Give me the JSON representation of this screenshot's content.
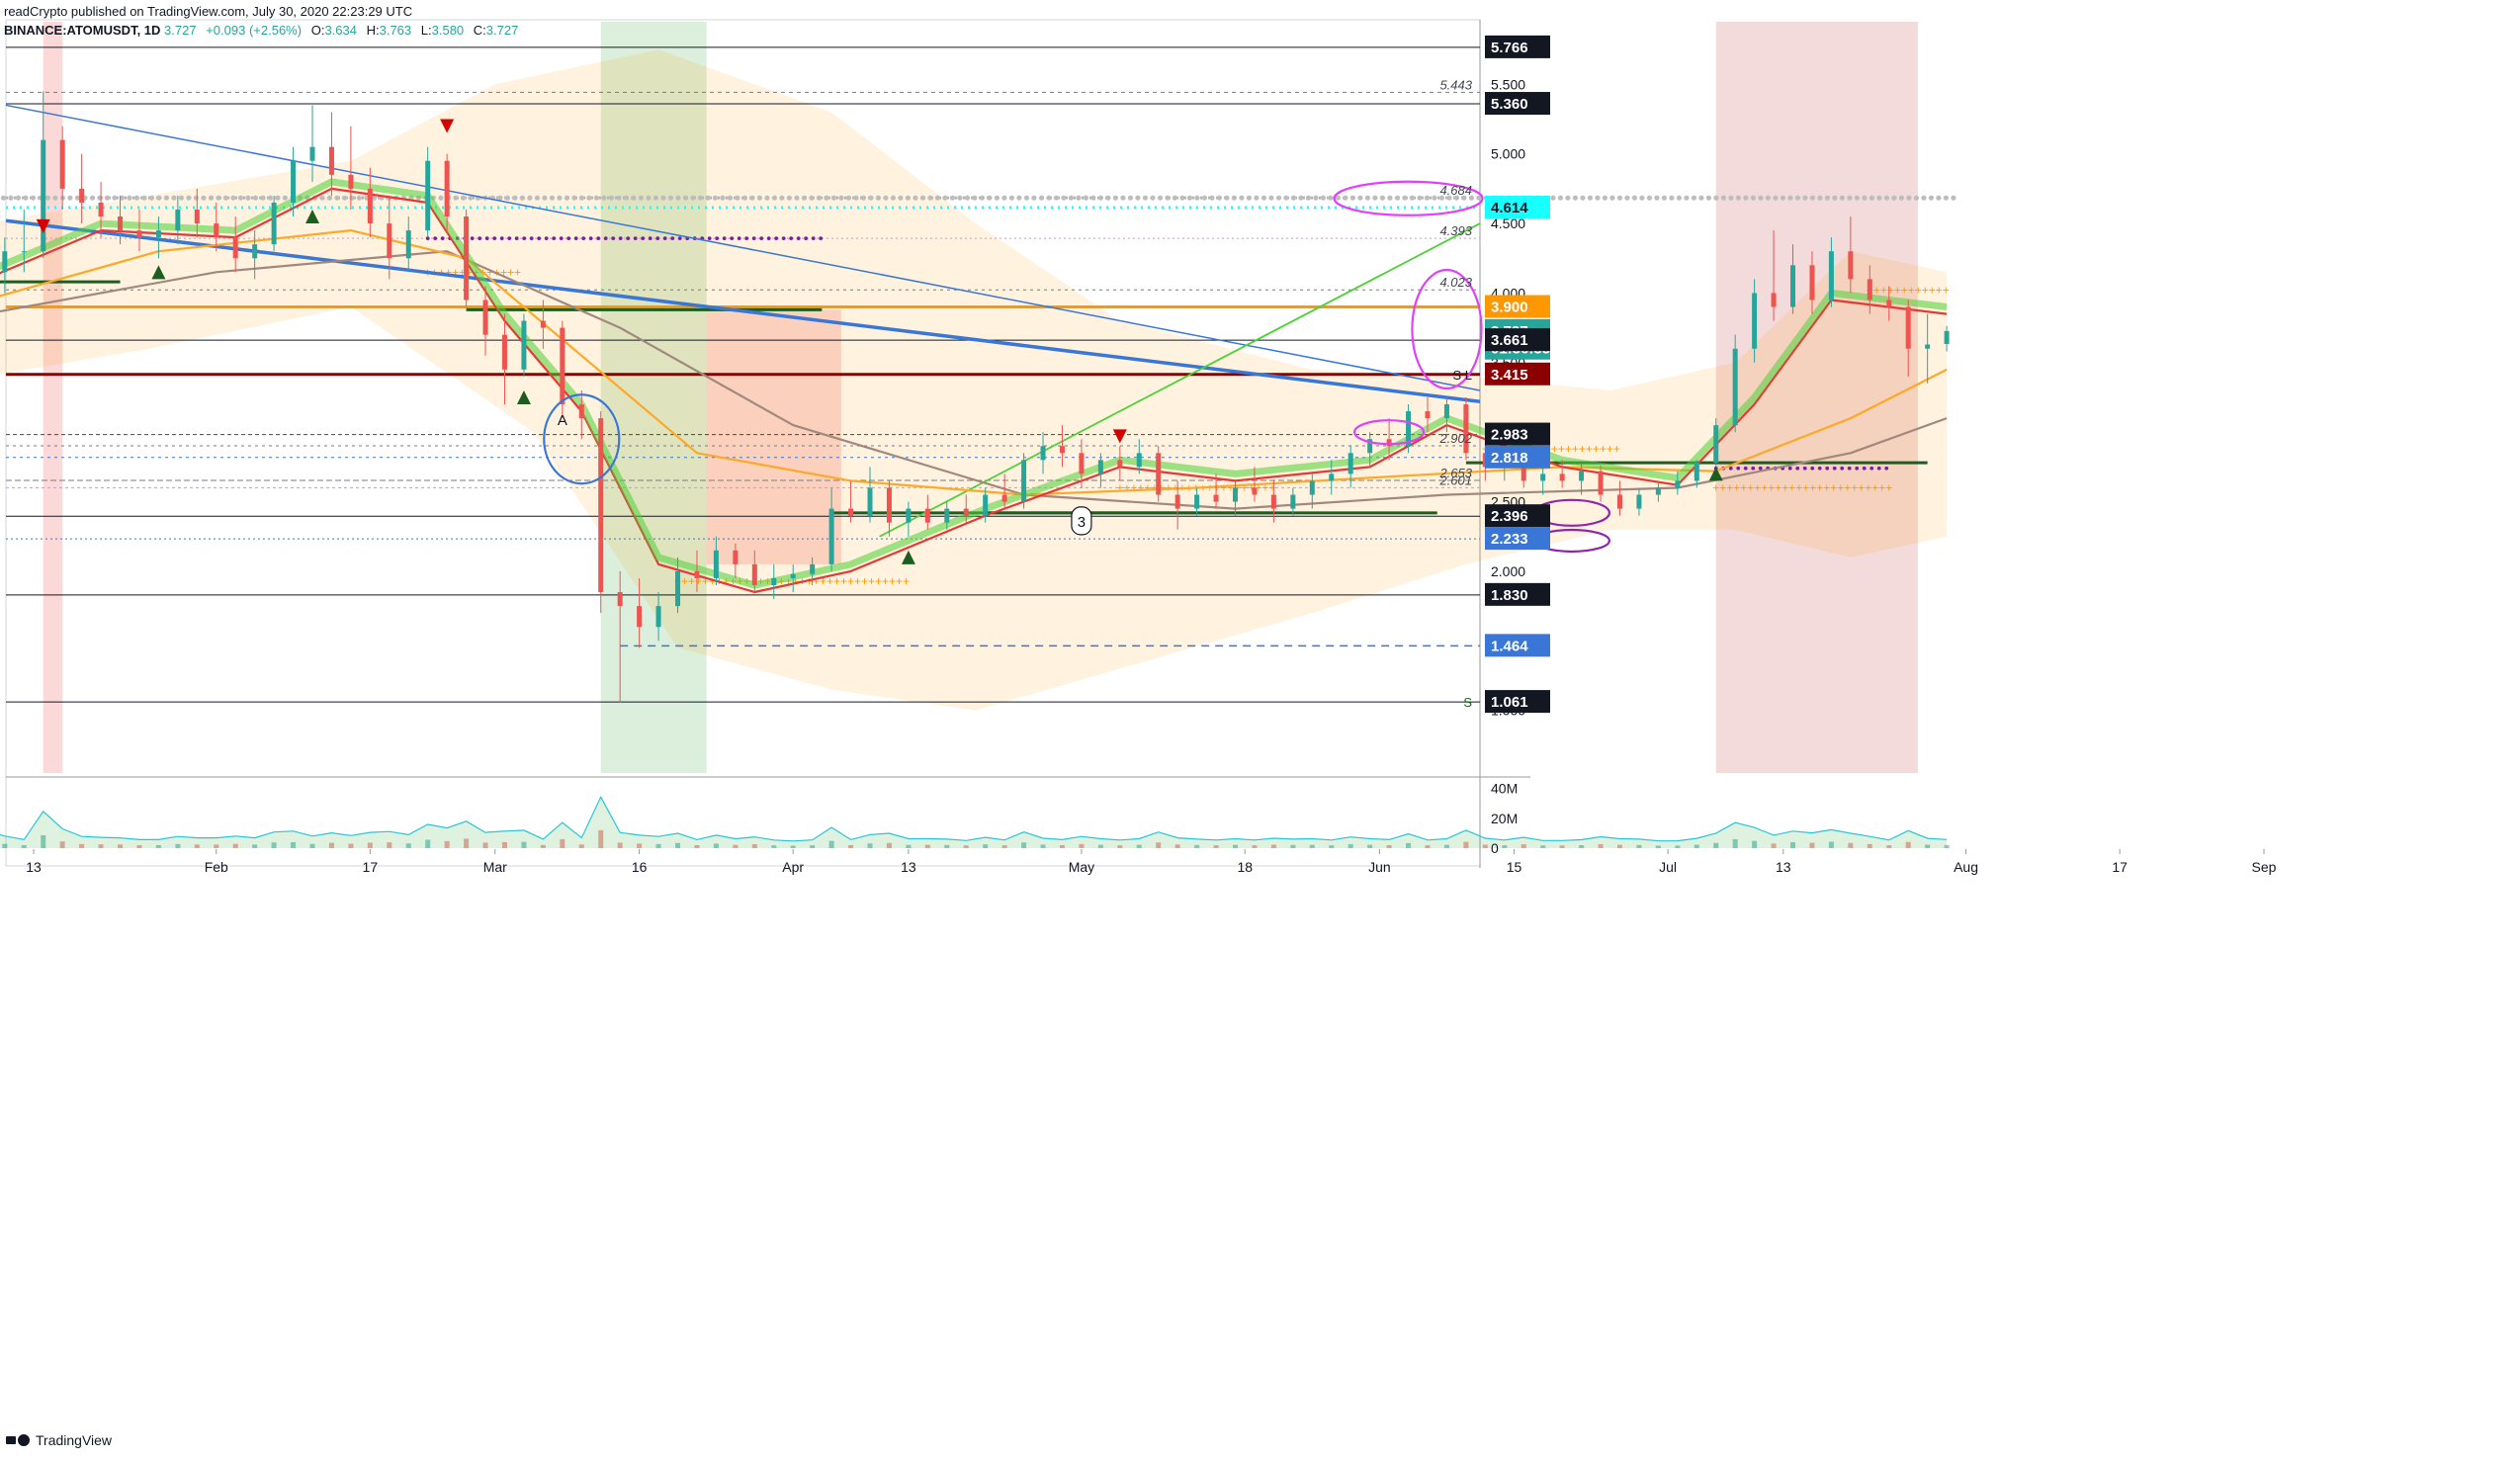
{
  "header": {
    "publisher_line": "readCrypto published on TradingView.com, July 30, 2020 22:23:29 UTC",
    "symbol": "BINANCE:ATOMUSDT, 1D",
    "last": "3.727",
    "change": "+0.093 (+2.56%)",
    "o_label": "O:",
    "o": "3.634",
    "h_label": "H:",
    "h": "3.763",
    "l_label": "L:",
    "l": "3.580",
    "c_label": "C:",
    "c": "3.727"
  },
  "footer": {
    "brand": "TradingView"
  },
  "colors": {
    "up": "#26a69a",
    "down": "#ef5350",
    "orange": "#ff9800",
    "blue_line": "#3a76d6",
    "green_line": "#4cd137",
    "magenta": "#e040fb",
    "purple": "#8e24aa",
    "cyan": "#18ffff",
    "dark_red": "#8b0000"
  },
  "chart_data": {
    "type": "candlestick",
    "symbol": "ATOMUSDT",
    "interval": "1D",
    "ylim": [
      0.55,
      5.95
    ],
    "x_ticks": [
      "13",
      "Feb",
      "17",
      "Mar",
      "16",
      "Apr",
      "13",
      "May",
      "18",
      "Jun",
      "15",
      "Jul",
      "13",
      "Aug",
      "17",
      "Sep"
    ],
    "y_ticks": [
      "1.000",
      "2.000",
      "2.500",
      "3.000",
      "3.500",
      "4.000",
      "4.500",
      "5.000",
      "5.500"
    ],
    "price_labels": [
      {
        "value": 5.766,
        "label": "5.766",
        "bg": "#131722",
        "fg": "#ffffff"
      },
      {
        "value": 5.36,
        "label": "5.360",
        "bg": "#131722",
        "fg": "#ffffff"
      },
      {
        "value": 4.614,
        "label": "4.614",
        "bg": "#18ffff",
        "fg": "#131722"
      },
      {
        "value": 3.9,
        "label": "3.900",
        "bg": "#ff9800",
        "fg": "#ffffff"
      },
      {
        "value": 3.727,
        "label": "3.727",
        "bg": "#26a69a",
        "fg": "#ffffff"
      },
      {
        "value": 3.6,
        "label": "01:36:33",
        "bg": "#26a69a",
        "fg": "#ffffff"
      },
      {
        "value": 3.661,
        "label": "3.661",
        "bg": "#131722",
        "fg": "#ffffff"
      },
      {
        "value": 3.415,
        "label": "3.415",
        "bg": "#8b0000",
        "fg": "#ffffff"
      },
      {
        "value": 2.983,
        "label": "2.983",
        "bg": "#131722",
        "fg": "#ffffff"
      },
      {
        "value": 2.818,
        "label": "2.818",
        "bg": "#3a76d6",
        "fg": "#ffffff"
      },
      {
        "value": 2.396,
        "label": "2.396",
        "bg": "#131722",
        "fg": "#ffffff"
      },
      {
        "value": 2.233,
        "label": "2.233",
        "bg": "#3a76d6",
        "fg": "#ffffff"
      },
      {
        "value": 1.83,
        "label": "1.830",
        "bg": "#131722",
        "fg": "#ffffff"
      },
      {
        "value": 1.464,
        "label": "1.464",
        "bg": "#3a76d6",
        "fg": "#ffffff"
      },
      {
        "value": 1.061,
        "label": "1.061",
        "bg": "#131722",
        "fg": "#ffffff"
      }
    ],
    "level_annotations": [
      {
        "value": 5.443,
        "label": "5.443"
      },
      {
        "value": 4.684,
        "label": "4.684"
      },
      {
        "value": 4.393,
        "label": "4.393"
      },
      {
        "value": 4.023,
        "label": "4.023"
      },
      {
        "value": 2.902,
        "label": "2.902"
      },
      {
        "value": 2.653,
        "label": "2.653"
      },
      {
        "value": 2.601,
        "label": "2.601"
      }
    ],
    "side_marks": [
      {
        "value": 3.415,
        "label": "S L"
      },
      {
        "value": 1.061,
        "label": "S"
      }
    ],
    "chart_annotations": [
      {
        "label": "A",
        "date": "2020-03-08",
        "value": 3.05
      },
      {
        "label": "3",
        "date": "2020-05-01",
        "value": 2.32
      }
    ],
    "volume_ticks": [
      "40M",
      "20M",
      "0"
    ],
    "candles": [
      {
        "d": "2020-01-08",
        "o": 3.85,
        "h": 4.25,
        "l": 3.7,
        "c": 4.15
      },
      {
        "d": "2020-01-10",
        "o": 4.15,
        "h": 4.4,
        "l": 4.0,
        "c": 4.3
      },
      {
        "d": "2020-01-12",
        "o": 4.3,
        "h": 4.6,
        "l": 4.15,
        "c": 4.3
      },
      {
        "d": "2020-01-14",
        "o": 4.3,
        "h": 5.45,
        "l": 4.25,
        "c": 5.1
      },
      {
        "d": "2020-01-16",
        "o": 5.1,
        "h": 5.2,
        "l": 4.6,
        "c": 4.75
      },
      {
        "d": "2020-01-18",
        "o": 4.75,
        "h": 5.0,
        "l": 4.5,
        "c": 4.65
      },
      {
        "d": "2020-01-20",
        "o": 4.65,
        "h": 4.8,
        "l": 4.4,
        "c": 4.55
      },
      {
        "d": "2020-01-22",
        "o": 4.55,
        "h": 4.7,
        "l": 4.35,
        "c": 4.45
      },
      {
        "d": "2020-01-24",
        "o": 4.45,
        "h": 4.6,
        "l": 4.3,
        "c": 4.4
      },
      {
        "d": "2020-01-26",
        "o": 4.4,
        "h": 4.55,
        "l": 4.25,
        "c": 4.45
      },
      {
        "d": "2020-01-28",
        "o": 4.45,
        "h": 4.7,
        "l": 4.35,
        "c": 4.6
      },
      {
        "d": "2020-01-30",
        "o": 4.6,
        "h": 4.75,
        "l": 4.4,
        "c": 4.5
      },
      {
        "d": "2020-02-01",
        "o": 4.5,
        "h": 4.65,
        "l": 4.3,
        "c": 4.4
      },
      {
        "d": "2020-02-03",
        "o": 4.4,
        "h": 4.55,
        "l": 4.15,
        "c": 4.25
      },
      {
        "d": "2020-02-05",
        "o": 4.25,
        "h": 4.45,
        "l": 4.1,
        "c": 4.35
      },
      {
        "d": "2020-02-07",
        "o": 4.35,
        "h": 4.7,
        "l": 4.3,
        "c": 4.65
      },
      {
        "d": "2020-02-09",
        "o": 4.65,
        "h": 5.05,
        "l": 4.55,
        "c": 4.95
      },
      {
        "d": "2020-02-11",
        "o": 4.95,
        "h": 5.35,
        "l": 4.8,
        "c": 5.05
      },
      {
        "d": "2020-02-13",
        "o": 5.05,
        "h": 5.3,
        "l": 4.7,
        "c": 4.85
      },
      {
        "d": "2020-02-15",
        "o": 4.85,
        "h": 5.2,
        "l": 4.6,
        "c": 4.75
      },
      {
        "d": "2020-02-17",
        "o": 4.75,
        "h": 4.9,
        "l": 4.4,
        "c": 4.5
      },
      {
        "d": "2020-02-19",
        "o": 4.5,
        "h": 4.7,
        "l": 4.1,
        "c": 4.25
      },
      {
        "d": "2020-02-21",
        "o": 4.25,
        "h": 4.55,
        "l": 4.15,
        "c": 4.45
      },
      {
        "d": "2020-02-23",
        "o": 4.45,
        "h": 5.05,
        "l": 4.4,
        "c": 4.95
      },
      {
        "d": "2020-02-25",
        "o": 4.95,
        "h": 5.0,
        "l": 4.45,
        "c": 4.55
      },
      {
        "d": "2020-02-27",
        "o": 4.55,
        "h": 4.6,
        "l": 3.9,
        "c": 3.95
      },
      {
        "d": "2020-02-29",
        "o": 3.95,
        "h": 4.05,
        "l": 3.55,
        "c": 3.7
      },
      {
        "d": "2020-03-02",
        "o": 3.7,
        "h": 3.85,
        "l": 3.2,
        "c": 3.45
      },
      {
        "d": "2020-03-04",
        "o": 3.45,
        "h": 3.85,
        "l": 3.4,
        "c": 3.8
      },
      {
        "d": "2020-03-06",
        "o": 3.8,
        "h": 3.95,
        "l": 3.6,
        "c": 3.75
      },
      {
        "d": "2020-03-08",
        "o": 3.75,
        "h": 3.8,
        "l": 3.1,
        "c": 3.2
      },
      {
        "d": "2020-03-10",
        "o": 3.2,
        "h": 3.3,
        "l": 2.95,
        "c": 3.1
      },
      {
        "d": "2020-03-12",
        "o": 3.1,
        "h": 3.15,
        "l": 1.7,
        "c": 1.85
      },
      {
        "d": "2020-03-14",
        "o": 1.85,
        "h": 2.0,
        "l": 1.06,
        "c": 1.75
      },
      {
        "d": "2020-03-16",
        "o": 1.75,
        "h": 1.95,
        "l": 1.45,
        "c": 1.6
      },
      {
        "d": "2020-03-18",
        "o": 1.6,
        "h": 1.85,
        "l": 1.5,
        "c": 1.75
      },
      {
        "d": "2020-03-20",
        "o": 1.75,
        "h": 2.1,
        "l": 1.7,
        "c": 2.0
      },
      {
        "d": "2020-03-22",
        "o": 2.0,
        "h": 2.15,
        "l": 1.85,
        "c": 1.95
      },
      {
        "d": "2020-03-24",
        "o": 1.95,
        "h": 2.25,
        "l": 1.9,
        "c": 2.15
      },
      {
        "d": "2020-03-26",
        "o": 2.15,
        "h": 2.2,
        "l": 1.95,
        "c": 2.05
      },
      {
        "d": "2020-03-28",
        "o": 2.05,
        "h": 2.15,
        "l": 1.85,
        "c": 1.9
      },
      {
        "d": "2020-03-30",
        "o": 1.9,
        "h": 2.05,
        "l": 1.8,
        "c": 1.95
      },
      {
        "d": "2020-04-01",
        "o": 1.95,
        "h": 2.05,
        "l": 1.85,
        "c": 1.98
      },
      {
        "d": "2020-04-03",
        "o": 1.98,
        "h": 2.1,
        "l": 1.9,
        "c": 2.05
      },
      {
        "d": "2020-04-05",
        "o": 2.05,
        "h": 2.6,
        "l": 2.0,
        "c": 2.45
      },
      {
        "d": "2020-04-07",
        "o": 2.45,
        "h": 2.65,
        "l": 2.35,
        "c": 2.4
      },
      {
        "d": "2020-04-09",
        "o": 2.4,
        "h": 2.75,
        "l": 2.35,
        "c": 2.6
      },
      {
        "d": "2020-04-11",
        "o": 2.6,
        "h": 2.65,
        "l": 2.25,
        "c": 2.35
      },
      {
        "d": "2020-04-13",
        "o": 2.35,
        "h": 2.5,
        "l": 2.25,
        "c": 2.45
      },
      {
        "d": "2020-04-15",
        "o": 2.45,
        "h": 2.55,
        "l": 2.3,
        "c": 2.35
      },
      {
        "d": "2020-04-17",
        "o": 2.35,
        "h": 2.5,
        "l": 2.3,
        "c": 2.45
      },
      {
        "d": "2020-04-19",
        "o": 2.45,
        "h": 2.55,
        "l": 2.35,
        "c": 2.4
      },
      {
        "d": "2020-04-21",
        "o": 2.4,
        "h": 2.6,
        "l": 2.35,
        "c": 2.55
      },
      {
        "d": "2020-04-23",
        "o": 2.55,
        "h": 2.7,
        "l": 2.45,
        "c": 2.5
      },
      {
        "d": "2020-04-25",
        "o": 2.5,
        "h": 2.85,
        "l": 2.45,
        "c": 2.8
      },
      {
        "d": "2020-04-27",
        "o": 2.8,
        "h": 3.0,
        "l": 2.7,
        "c": 2.9
      },
      {
        "d": "2020-04-29",
        "o": 2.9,
        "h": 3.05,
        "l": 2.75,
        "c": 2.85
      },
      {
        "d": "2020-05-01",
        "o": 2.85,
        "h": 2.95,
        "l": 2.6,
        "c": 2.7
      },
      {
        "d": "2020-05-03",
        "o": 2.7,
        "h": 2.85,
        "l": 2.6,
        "c": 2.8
      },
      {
        "d": "2020-05-05",
        "o": 2.8,
        "h": 2.9,
        "l": 2.65,
        "c": 2.75
      },
      {
        "d": "2020-05-07",
        "o": 2.75,
        "h": 2.95,
        "l": 2.7,
        "c": 2.85
      },
      {
        "d": "2020-05-09",
        "o": 2.85,
        "h": 2.9,
        "l": 2.5,
        "c": 2.55
      },
      {
        "d": "2020-05-11",
        "o": 2.55,
        "h": 2.65,
        "l": 2.3,
        "c": 2.45
      },
      {
        "d": "2020-05-13",
        "o": 2.45,
        "h": 2.6,
        "l": 2.4,
        "c": 2.55
      },
      {
        "d": "2020-05-15",
        "o": 2.55,
        "h": 2.7,
        "l": 2.45,
        "c": 2.5
      },
      {
        "d": "2020-05-17",
        "o": 2.5,
        "h": 2.65,
        "l": 2.4,
        "c": 2.6
      },
      {
        "d": "2020-05-19",
        "o": 2.6,
        "h": 2.75,
        "l": 2.5,
        "c": 2.55
      },
      {
        "d": "2020-05-21",
        "o": 2.55,
        "h": 2.65,
        "l": 2.35,
        "c": 2.45
      },
      {
        "d": "2020-05-23",
        "o": 2.45,
        "h": 2.6,
        "l": 2.4,
        "c": 2.55
      },
      {
        "d": "2020-05-25",
        "o": 2.55,
        "h": 2.7,
        "l": 2.45,
        "c": 2.65
      },
      {
        "d": "2020-05-27",
        "o": 2.65,
        "h": 2.8,
        "l": 2.55,
        "c": 2.7
      },
      {
        "d": "2020-05-29",
        "o": 2.7,
        "h": 2.9,
        "l": 2.6,
        "c": 2.85
      },
      {
        "d": "2020-05-31",
        "o": 2.85,
        "h": 3.0,
        "l": 2.75,
        "c": 2.95
      },
      {
        "d": "2020-06-02",
        "o": 2.95,
        "h": 3.1,
        "l": 2.8,
        "c": 2.9
      },
      {
        "d": "2020-06-04",
        "o": 2.9,
        "h": 3.2,
        "l": 2.85,
        "c": 3.15
      },
      {
        "d": "2020-06-06",
        "o": 3.15,
        "h": 3.25,
        "l": 3.0,
        "c": 3.1
      },
      {
        "d": "2020-06-08",
        "o": 3.1,
        "h": 3.25,
        "l": 3.0,
        "c": 3.2
      },
      {
        "d": "2020-06-10",
        "o": 3.2,
        "h": 3.25,
        "l": 2.8,
        "c": 2.85
      },
      {
        "d": "2020-06-12",
        "o": 2.85,
        "h": 2.95,
        "l": 2.65,
        "c": 2.75
      },
      {
        "d": "2020-06-14",
        "o": 2.75,
        "h": 2.9,
        "l": 2.65,
        "c": 2.8
      },
      {
        "d": "2020-06-16",
        "o": 2.8,
        "h": 2.85,
        "l": 2.6,
        "c": 2.65
      },
      {
        "d": "2020-06-18",
        "o": 2.65,
        "h": 2.75,
        "l": 2.55,
        "c": 2.7
      },
      {
        "d": "2020-06-20",
        "o": 2.7,
        "h": 2.8,
        "l": 2.6,
        "c": 2.65
      },
      {
        "d": "2020-06-22",
        "o": 2.65,
        "h": 2.78,
        "l": 2.55,
        "c": 2.72
      },
      {
        "d": "2020-06-24",
        "o": 2.72,
        "h": 2.76,
        "l": 2.5,
        "c": 2.55
      },
      {
        "d": "2020-06-26",
        "o": 2.55,
        "h": 2.65,
        "l": 2.4,
        "c": 2.45
      },
      {
        "d": "2020-06-28",
        "o": 2.45,
        "h": 2.6,
        "l": 2.4,
        "c": 2.55
      },
      {
        "d": "2020-06-30",
        "o": 2.55,
        "h": 2.65,
        "l": 2.5,
        "c": 2.6
      },
      {
        "d": "2020-07-02",
        "o": 2.6,
        "h": 2.72,
        "l": 2.55,
        "c": 2.65
      },
      {
        "d": "2020-07-04",
        "o": 2.65,
        "h": 2.8,
        "l": 2.6,
        "c": 2.78
      },
      {
        "d": "2020-07-06",
        "o": 2.78,
        "h": 3.1,
        "l": 2.75,
        "c": 3.05
      },
      {
        "d": "2020-07-08",
        "o": 3.05,
        "h": 3.7,
        "l": 3.0,
        "c": 3.6
      },
      {
        "d": "2020-07-10",
        "o": 3.6,
        "h": 4.1,
        "l": 3.5,
        "c": 4.0
      },
      {
        "d": "2020-07-12",
        "o": 4.0,
        "h": 4.45,
        "l": 3.8,
        "c": 3.9
      },
      {
        "d": "2020-07-14",
        "o": 3.9,
        "h": 4.35,
        "l": 3.85,
        "c": 4.2
      },
      {
        "d": "2020-07-16",
        "o": 4.2,
        "h": 4.3,
        "l": 3.85,
        "c": 3.95
      },
      {
        "d": "2020-07-18",
        "o": 3.95,
        "h": 4.4,
        "l": 3.9,
        "c": 4.3
      },
      {
        "d": "2020-07-20",
        "o": 4.3,
        "h": 4.55,
        "l": 4.0,
        "c": 4.1
      },
      {
        "d": "2020-07-22",
        "o": 4.1,
        "h": 4.2,
        "l": 3.85,
        "c": 3.95
      },
      {
        "d": "2020-07-24",
        "o": 3.95,
        "h": 4.05,
        "l": 3.8,
        "c": 3.9
      },
      {
        "d": "2020-07-26",
        "o": 3.9,
        "h": 3.95,
        "l": 3.4,
        "c": 3.6
      },
      {
        "d": "2020-07-28",
        "o": 3.6,
        "h": 3.85,
        "l": 3.35,
        "c": 3.63
      },
      {
        "d": "2020-07-30",
        "o": 3.634,
        "h": 3.763,
        "l": 3.58,
        "c": 3.727
      }
    ],
    "ema_fast": [
      {
        "d": "2020-01-08",
        "v": 4.1
      },
      {
        "d": "2020-01-20",
        "v": 4.45
      },
      {
        "d": "2020-02-03",
        "v": 4.4
      },
      {
        "d": "2020-02-13",
        "v": 4.75
      },
      {
        "d": "2020-02-23",
        "v": 4.65
      },
      {
        "d": "2020-03-02",
        "v": 3.8
      },
      {
        "d": "2020-03-10",
        "v": 3.15
      },
      {
        "d": "2020-03-18",
        "v": 2.05
      },
      {
        "d": "2020-03-28",
        "v": 1.85
      },
      {
        "d": "2020-04-07",
        "v": 2.0
      },
      {
        "d": "2020-04-21",
        "v": 2.4
      },
      {
        "d": "2020-05-05",
        "v": 2.75
      },
      {
        "d": "2020-05-17",
        "v": 2.65
      },
      {
        "d": "2020-05-31",
        "v": 2.75
      },
      {
        "d": "2020-06-08",
        "v": 3.05
      },
      {
        "d": "2020-06-20",
        "v": 2.75
      },
      {
        "d": "2020-07-02",
        "v": 2.62
      },
      {
        "d": "2020-07-10",
        "v": 3.2
      },
      {
        "d": "2020-07-18",
        "v": 3.95
      },
      {
        "d": "2020-07-30",
        "v": 3.85
      }
    ],
    "ema_mid": [
      {
        "d": "2020-01-08",
        "v": 3.95
      },
      {
        "d": "2020-01-26",
        "v": 4.3
      },
      {
        "d": "2020-02-15",
        "v": 4.45
      },
      {
        "d": "2020-02-27",
        "v": 4.25
      },
      {
        "d": "2020-03-10",
        "v": 3.55
      },
      {
        "d": "2020-03-22",
        "v": 2.85
      },
      {
        "d": "2020-04-07",
        "v": 2.65
      },
      {
        "d": "2020-04-25",
        "v": 2.55
      },
      {
        "d": "2020-05-13",
        "v": 2.6
      },
      {
        "d": "2020-06-02",
        "v": 2.68
      },
      {
        "d": "2020-06-20",
        "v": 2.75
      },
      {
        "d": "2020-07-06",
        "v": 2.72
      },
      {
        "d": "2020-07-20",
        "v": 3.1
      },
      {
        "d": "2020-07-30",
        "v": 3.45
      }
    ],
    "ema_slow": [
      {
        "d": "2020-01-08",
        "v": 3.85
      },
      {
        "d": "2020-02-01",
        "v": 4.15
      },
      {
        "d": "2020-02-25",
        "v": 4.3
      },
      {
        "d": "2020-03-14",
        "v": 3.75
      },
      {
        "d": "2020-04-01",
        "v": 3.05
      },
      {
        "d": "2020-04-25",
        "v": 2.55
      },
      {
        "d": "2020-05-17",
        "v": 2.45
      },
      {
        "d": "2020-06-08",
        "v": 2.55
      },
      {
        "d": "2020-07-02",
        "v": 2.6
      },
      {
        "d": "2020-07-20",
        "v": 2.85
      },
      {
        "d": "2020-07-30",
        "v": 3.1
      }
    ]
  }
}
